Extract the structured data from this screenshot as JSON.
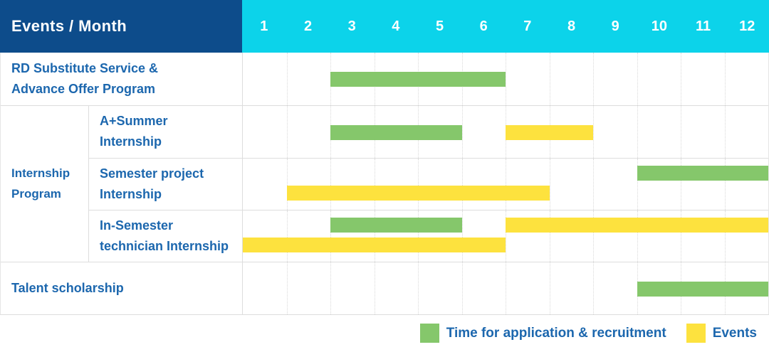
{
  "colors": {
    "header_bg": "#0D4C8B",
    "months_bg": "#0CD3EA",
    "text_blue": "#1C67AE",
    "bar_green": "#85C76B",
    "bar_yellow": "#FDE23E"
  },
  "header": {
    "title": "Events / Month",
    "months": [
      "1",
      "2",
      "3",
      "4",
      "5",
      "6",
      "7",
      "8",
      "9",
      "10",
      "11",
      "12"
    ]
  },
  "chart_data": {
    "type": "gantt",
    "unit": "month",
    "axis_range": [
      1,
      12
    ],
    "bar_kinds": {
      "application": "Time for application & recruitment",
      "events": "Events"
    },
    "rows": [
      {
        "type": "simple",
        "label": "RD Substitute Service & Advance Offer Program",
        "label_lines": [
          "RD Substitute Service &",
          "Advance Offer Program"
        ],
        "bars": [
          {
            "kind": "application",
            "start": 3,
            "end": 6,
            "lane": "center"
          }
        ]
      },
      {
        "type": "group",
        "group_label": "Internship Program",
        "group_label_lines": [
          "Internship",
          "Program"
        ],
        "children": [
          {
            "label": "A+Summer Internship",
            "label_lines": [
              "A+Summer",
              "Internship"
            ],
            "bars": [
              {
                "kind": "application",
                "start": 3,
                "end": 5,
                "lane": "center"
              },
              {
                "kind": "events",
                "start": 7,
                "end": 8,
                "lane": "center"
              }
            ]
          },
          {
            "label": "Semester project Internship",
            "label_lines": [
              "Semester project",
              "Internship"
            ],
            "bars": [
              {
                "kind": "application",
                "start": 10,
                "end": 12,
                "lane": "top"
              },
              {
                "kind": "events",
                "start": 2,
                "end": 7,
                "lane": "bottom"
              }
            ]
          },
          {
            "label": "In-Semester technician Internship",
            "label_lines": [
              "In-Semester",
              "technician Internship"
            ],
            "bars": [
              {
                "kind": "application",
                "start": 3,
                "end": 5,
                "lane": "top"
              },
              {
                "kind": "events",
                "start": 7,
                "end": 12,
                "lane": "top"
              },
              {
                "kind": "events",
                "start": 1,
                "end": 6,
                "lane": "bottom"
              }
            ]
          }
        ]
      },
      {
        "type": "simple",
        "label": "Talent scholarship",
        "label_lines": [
          "Talent scholarship"
        ],
        "bars": [
          {
            "kind": "application",
            "start": 10,
            "end": 12,
            "lane": "center"
          }
        ]
      }
    ]
  },
  "legend": {
    "items": [
      {
        "kind": "application",
        "label": "Time for application & recruitment",
        "color": "#85C76B"
      },
      {
        "kind": "events",
        "label": "Events",
        "color": "#FDE23E"
      }
    ]
  }
}
